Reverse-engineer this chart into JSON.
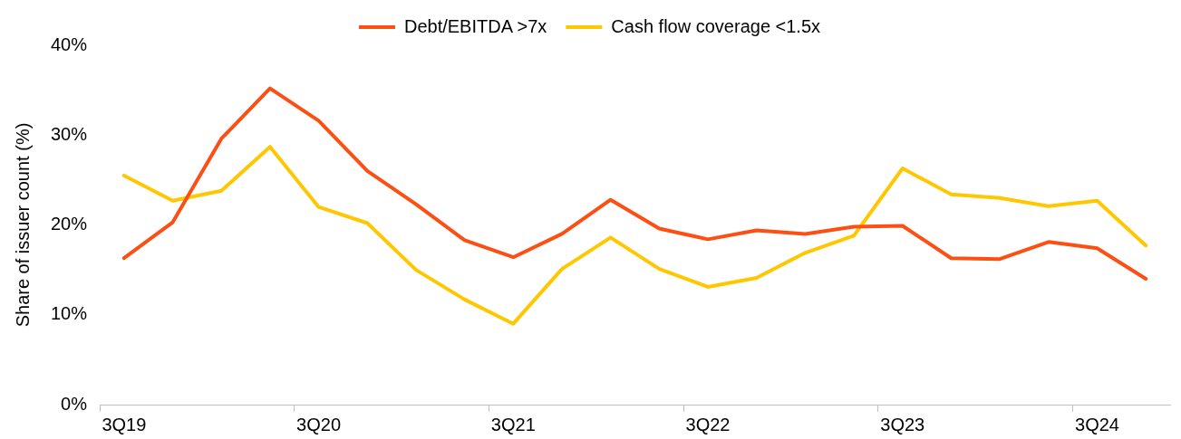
{
  "chart_data": {
    "type": "line",
    "ylabel": "Share of issuer count (%)",
    "categories": [
      "3Q19",
      null,
      null,
      null,
      "3Q20",
      null,
      null,
      null,
      "3Q21",
      null,
      null,
      null,
      "3Q22",
      null,
      null,
      null,
      "3Q23",
      null,
      null,
      null,
      "3Q24",
      null
    ],
    "series": [
      {
        "name": "Debt/EBITDA >7x",
        "color": "#fc4f14",
        "values": [
          16.3,
          20.3,
          29.6,
          35.2,
          31.6,
          26,
          22.3,
          18.3,
          16.4,
          19,
          22.8,
          19.6,
          18.4,
          19.4,
          19,
          19.8,
          19.9,
          16.3,
          16.2,
          18.1,
          17.4,
          14
        ]
      },
      {
        "name": "Cash flow coverage <1.5x",
        "color": "#ffc700",
        "values": [
          25.5,
          22.7,
          23.8,
          28.7,
          22,
          20.2,
          15,
          11.7,
          9,
          15.1,
          18.6,
          15.1,
          13.1,
          14.1,
          16.9,
          18.8,
          26.3,
          23.4,
          23,
          22.1,
          22.7,
          17.7
        ]
      }
    ],
    "ylim": [
      0,
      40
    ],
    "yticks": [
      {
        "value": 0,
        "label": "0%"
      },
      {
        "value": 10,
        "label": "10%"
      },
      {
        "value": 20,
        "label": "20%"
      },
      {
        "value": 30,
        "label": "30%"
      },
      {
        "value": 40,
        "label": "40%"
      }
    ],
    "grid": false,
    "legend": "top",
    "marker": "none",
    "line_style": "solid"
  }
}
